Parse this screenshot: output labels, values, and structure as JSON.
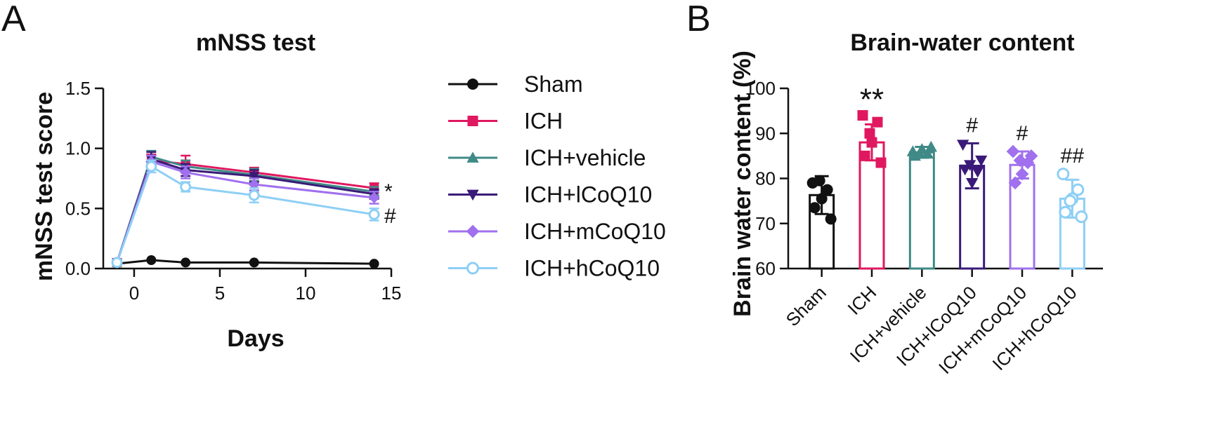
{
  "panels": {
    "A": {
      "letter": "A",
      "annotations": {
        "sig_icp": "*",
        "sig_hcoq10": "#"
      }
    },
    "B": {
      "letter": "B"
    }
  },
  "colors": {
    "Sham": "#111111",
    "ICH": "#e0185f",
    "ICH+vehicle": "#3f8a86",
    "ICH+lCoQ10": "#3a1a78",
    "ICH+mCoQ10": "#a070ee",
    "ICH+hCoQ10": "#8ecff5"
  },
  "markers": {
    "Sham": "circle-filled",
    "ICH": "square-filled",
    "ICH+vehicle": "triangle-up-filled",
    "ICH+lCoQ10": "triangle-down-filled",
    "ICH+mCoQ10": "diamond-filled",
    "ICH+hCoQ10": "circle-open"
  },
  "chart_data": [
    {
      "type": "line",
      "title": "mNSS test",
      "xlabel": "Days",
      "ylabel": "mNSS test score",
      "xlim": [
        -1.8,
        15
      ],
      "ylim": [
        0,
        1.5
      ],
      "xticks": [
        "0",
        "5",
        "10",
        "15"
      ],
      "yticks": [
        "0.0",
        "0.5",
        "1.0",
        "1.5"
      ],
      "x": [
        -1,
        1,
        3,
        7,
        14
      ],
      "series": [
        {
          "name": "Sham",
          "values": [
            0.04,
            0.07,
            0.05,
            0.05,
            0.04
          ],
          "errors": [
            0,
            0,
            0,
            0,
            0
          ]
        },
        {
          "name": "ICH",
          "values": [
            0.05,
            0.9,
            0.87,
            0.8,
            0.67
          ],
          "errors": [
            0.02,
            0.05,
            0.07,
            0.04,
            0.04
          ]
        },
        {
          "name": "ICH+vehicle",
          "values": [
            0.05,
            0.93,
            0.85,
            0.78,
            0.64
          ],
          "errors": [
            0.02,
            0.05,
            0.05,
            0.05,
            0.04
          ]
        },
        {
          "name": "ICH+lCoQ10",
          "values": [
            0.05,
            0.91,
            0.82,
            0.77,
            0.62
          ],
          "errors": [
            0.02,
            0.06,
            0.05,
            0.05,
            0.04
          ]
        },
        {
          "name": "ICH+mCoQ10",
          "values": [
            0.05,
            0.89,
            0.8,
            0.7,
            0.59
          ],
          "errors": [
            0.02,
            0.05,
            0.05,
            0.05,
            0.05
          ]
        },
        {
          "name": "ICH+hCoQ10",
          "values": [
            0.05,
            0.85,
            0.68,
            0.61,
            0.45
          ],
          "errors": [
            0.02,
            0.05,
            0.04,
            0.06,
            0.05
          ]
        }
      ],
      "legend": "right"
    },
    {
      "type": "bar",
      "title": "Brain-water content",
      "xlabel": "",
      "ylabel": "Brain water content (%)",
      "ylim": [
        60,
        100
      ],
      "yticks": [
        "60",
        "70",
        "80",
        "90",
        "100"
      ],
      "categories": [
        "Sham",
        "ICH",
        "ICH+vehicle",
        "ICH+lCoQ10",
        "ICH+mCoQ10",
        "ICH+hCoQ10"
      ],
      "values": [
        76.3,
        88.0,
        85.8,
        82.8,
        83.0,
        75.5
      ],
      "errors": [
        4.2,
        4.0,
        1.2,
        5.0,
        3.0,
        4.2
      ],
      "points": [
        [
          79.0,
          77.5,
          75.5,
          73.5,
          71.0,
          79.5
        ],
        [
          94.0,
          92.5,
          88.0,
          85.0,
          83.5,
          90.0
        ],
        [
          86.0,
          85.5,
          86.5,
          85.0,
          87.0,
          85.5
        ],
        [
          87.5,
          81.5,
          79.0,
          82.0,
          84.0,
          83.0
        ],
        [
          86.0,
          83.5,
          81.0,
          79.0,
          85.0,
          84.0
        ],
        [
          81.0,
          77.5,
          75.5,
          72.5,
          71.5,
          75.0
        ]
      ],
      "annotations": [
        "",
        "**",
        "",
        "#",
        "#",
        "##"
      ]
    }
  ]
}
